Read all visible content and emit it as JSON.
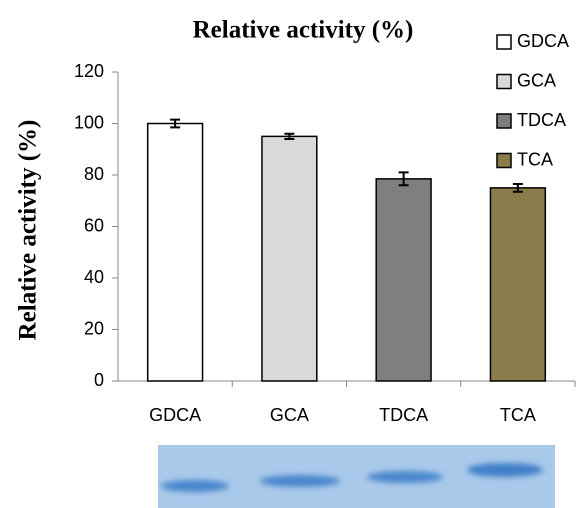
{
  "chart_data": {
    "type": "bar",
    "title": "Relative activity (%)",
    "y_label": "Relative activity (%)",
    "categories": [
      "GDCA",
      "GCA",
      "TDCA",
      "TCA"
    ],
    "values": [
      100,
      95,
      78.5,
      75
    ],
    "errors": [
      1.5,
      1,
      2.5,
      1.5
    ],
    "colors": [
      "#ffffff",
      "#d9d9d9",
      "#7f7f7f",
      "#8a7d4b"
    ],
    "ylim": [
      0,
      120
    ],
    "yticks": [
      0,
      20,
      40,
      60,
      80,
      100,
      120
    ],
    "grid": false,
    "legend": "right"
  }
}
